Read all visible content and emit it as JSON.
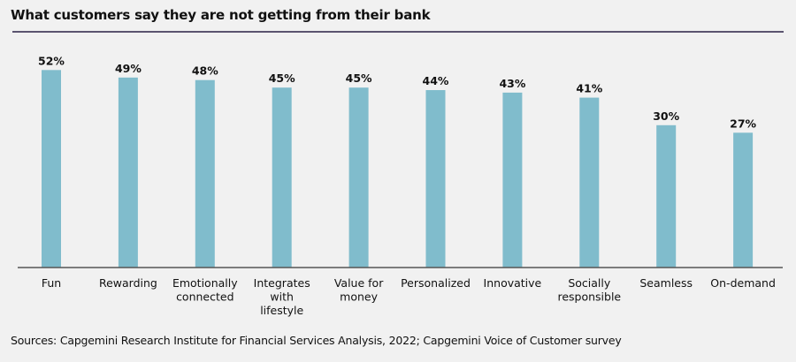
{
  "chart_data": {
    "type": "bar",
    "title": "What customers say they are not getting from their bank",
    "categories": [
      "Fun",
      "Rewarding",
      "Emotionally connected",
      "Integrates with lifestyle",
      "Value for money",
      "Personalized",
      "Innovative",
      "Socially responsible",
      "Seamless",
      "On-demand"
    ],
    "category_lines": [
      [
        "Fun"
      ],
      [
        "Rewarding"
      ],
      [
        "Emotionally",
        "connected"
      ],
      [
        "Integrates",
        "with",
        "lifestyle"
      ],
      [
        "Value for",
        "money"
      ],
      [
        "Personalized"
      ],
      [
        "Innovative"
      ],
      [
        "Socially",
        "responsible"
      ],
      [
        "Seamless"
      ],
      [
        "On-demand"
      ]
    ],
    "values": [
      52,
      49,
      48,
      45,
      45,
      44,
      43,
      41,
      30,
      27
    ],
    "value_labels": [
      "52%",
      "49%",
      "48%",
      "45%",
      "45%",
      "44%",
      "43%",
      "41%",
      "30%",
      "27%"
    ],
    "unit": "%",
    "xlabel": "",
    "ylabel": "",
    "grid": false,
    "bar_color": "#80bccc",
    "source": "Sources: Capgemini Research Institute for Financial Services Analysis, 2022; Capgemini Voice of Customer survey"
  }
}
